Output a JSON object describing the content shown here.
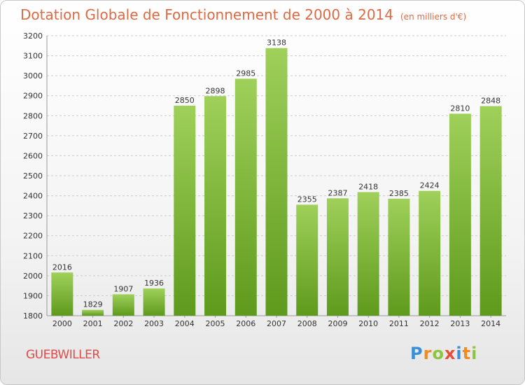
{
  "title": "Dotation Globale de Fonctionnement de 2000 à 2014",
  "unit_note": "(en milliers d'€)",
  "commune": "GUEBWILLER",
  "logo": {
    "letters": [
      "P",
      "r",
      "o",
      "x",
      "i",
      "t",
      "i"
    ],
    "colors": [
      "#3b8fd6",
      "#f08a24",
      "#8cc63f",
      "#e84b3a",
      "#3b8fd6",
      "#f08a24",
      "#8cc63f"
    ]
  },
  "colors": {
    "bar_top": "#9fd05a",
    "bar_bottom": "#5e9a1c",
    "grid": "#cccccc",
    "title": "#dd6a44",
    "commune": "#e04a4a"
  },
  "chart_data": {
    "type": "bar",
    "categories": [
      "2000",
      "2001",
      "2002",
      "2003",
      "2004",
      "2005",
      "2006",
      "2007",
      "2008",
      "2009",
      "2010",
      "2011",
      "2012",
      "2013",
      "2014"
    ],
    "values": [
      2016,
      1829,
      1907,
      1936,
      2850,
      2898,
      2985,
      3138,
      2355,
      2387,
      2418,
      2385,
      2424,
      2810,
      2848
    ],
    "ylim": [
      1800,
      3200
    ],
    "yticks": [
      1800,
      1900,
      2000,
      2100,
      2200,
      2300,
      2400,
      2500,
      2600,
      2700,
      2800,
      2900,
      3000,
      3100,
      3200
    ],
    "grid": true,
    "data_labels": true
  }
}
